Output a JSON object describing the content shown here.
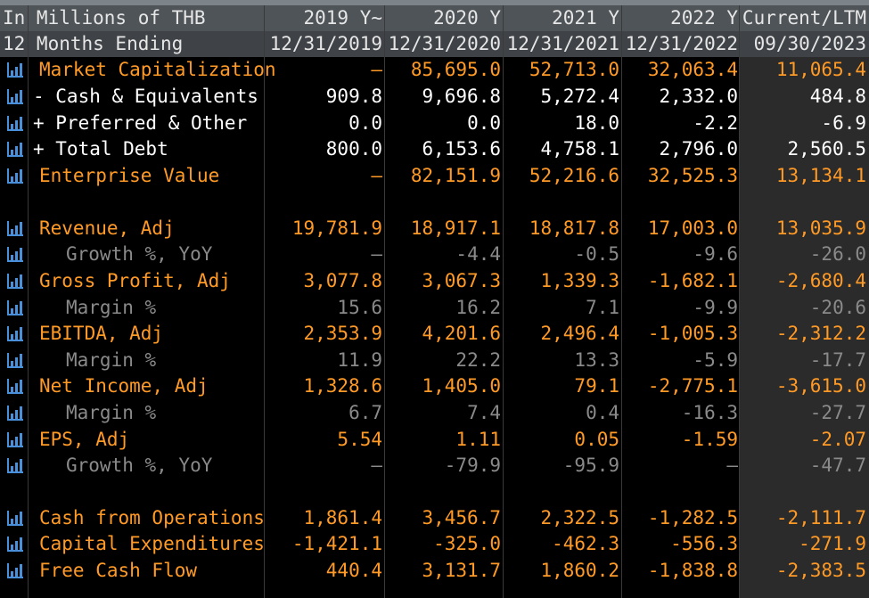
{
  "colors": {
    "orange": "#ff9a26",
    "white": "#ffffff",
    "gray": "#8a8a8a",
    "header_bg": "#4f5458"
  },
  "header": {
    "unit_label": "In Millions of THB",
    "period_label": "12 Months Ending",
    "columns": [
      {
        "label": "2019 Y~",
        "date": "12/31/2019"
      },
      {
        "label": "2020 Y",
        "date": "12/31/2020"
      },
      {
        "label": "2021 Y",
        "date": "12/31/2021"
      },
      {
        "label": "2022 Y",
        "date": "12/31/2022"
      },
      {
        "label": "Current/LTM",
        "date": "09/30/2023"
      }
    ]
  },
  "rows": [
    {
      "label": "Market Capitalization",
      "style": "orange",
      "values": [
        "–",
        "85,695.0",
        "52,713.0",
        "32,063.4",
        "11,065.4"
      ]
    },
    {
      "label": "- Cash & Equivalents",
      "style": "white",
      "values": [
        "909.8",
        "9,696.8",
        "5,272.4",
        "2,332.0",
        "484.8"
      ]
    },
    {
      "label": "+ Preferred & Other",
      "style": "white",
      "values": [
        "0.0",
        "0.0",
        "18.0",
        "-2.2",
        "-6.9"
      ]
    },
    {
      "label": "+ Total Debt",
      "style": "white",
      "values": [
        "800.0",
        "6,153.6",
        "4,758.1",
        "2,796.0",
        "2,560.5"
      ]
    },
    {
      "label": "Enterprise Value",
      "style": "orange",
      "values": [
        "–",
        "82,151.9",
        "52,216.6",
        "32,525.3",
        "13,134.1"
      ]
    },
    {
      "label": "Revenue, Adj",
      "style": "orange",
      "values": [
        "19,781.9",
        "18,917.1",
        "18,817.8",
        "17,003.0",
        "13,035.9"
      ]
    },
    {
      "label": "Growth %, YoY",
      "style": "gray",
      "values": [
        "–",
        "-4.4",
        "-0.5",
        "-9.6",
        "-26.0"
      ]
    },
    {
      "label": "Gross Profit, Adj",
      "style": "orange",
      "values": [
        "3,077.8",
        "3,067.3",
        "1,339.3",
        "-1,682.1",
        "-2,680.4"
      ]
    },
    {
      "label": "Margin %",
      "style": "gray",
      "values": [
        "15.6",
        "16.2",
        "7.1",
        "-9.9",
        "-20.6"
      ]
    },
    {
      "label": "EBITDA, Adj",
      "style": "orange",
      "values": [
        "2,353.9",
        "4,201.6",
        "2,496.4",
        "-1,005.3",
        "-2,312.2"
      ]
    },
    {
      "label": "Margin %",
      "style": "gray",
      "values": [
        "11.9",
        "22.2",
        "13.3",
        "-5.9",
        "-17.7"
      ]
    },
    {
      "label": "Net Income, Adj",
      "style": "orange",
      "values": [
        "1,328.6",
        "1,405.0",
        "79.1",
        "-2,775.1",
        "-3,615.0"
      ]
    },
    {
      "label": "Margin %",
      "style": "gray",
      "values": [
        "6.7",
        "7.4",
        "0.4",
        "-16.3",
        "-27.7"
      ]
    },
    {
      "label": "EPS, Adj",
      "style": "orange",
      "values": [
        "5.54",
        "1.11",
        "0.05",
        "-1.59",
        "-2.07"
      ]
    },
    {
      "label": "Growth %, YoY",
      "style": "gray",
      "values": [
        "–",
        "-79.9",
        "-95.9",
        "–",
        "-47.7"
      ]
    },
    {
      "label": "Cash from Operations",
      "style": "orange",
      "values": [
        "1,861.4",
        "3,456.7",
        "2,322.5",
        "-1,282.5",
        "-2,111.7"
      ]
    },
    {
      "label": "Capital Expenditures",
      "style": "orange",
      "values": [
        "-1,421.1",
        "-325.0",
        "-462.3",
        "-556.3",
        "-271.9"
      ]
    },
    {
      "label": "Free Cash Flow",
      "style": "orange",
      "values": [
        "440.4",
        "3,131.7",
        "1,860.2",
        "-1,838.8",
        "-2,383.5"
      ]
    }
  ]
}
